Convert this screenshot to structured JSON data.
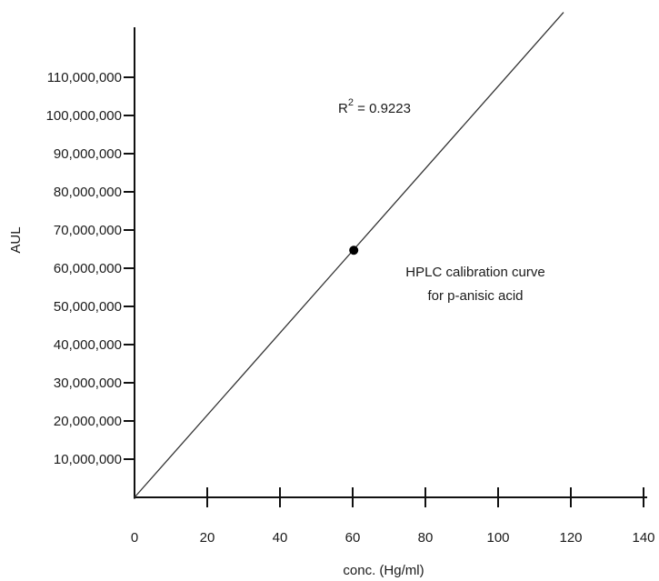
{
  "chart_data": {
    "type": "line",
    "title": "",
    "xlabel": "conc. (Hg/ml)",
    "ylabel": "AUL",
    "xlim": [
      0,
      140
    ],
    "ylim": [
      0,
      120000000
    ],
    "x_ticks": [
      0,
      20,
      40,
      60,
      80,
      100,
      120,
      140
    ],
    "x_tick_labels": [
      "0",
      "20",
      "40",
      "60",
      "80",
      "100",
      "120",
      "140"
    ],
    "y_ticks": [
      10000000,
      20000000,
      30000000,
      40000000,
      50000000,
      60000000,
      70000000,
      80000000,
      90000000,
      100000000,
      110000000
    ],
    "y_tick_labels": [
      "10,000,000",
      "20,000,000",
      "30,000,000",
      "40,000,000",
      "50,000,000",
      "60,000,000",
      "70,000,000",
      "80,000,000",
      "90,000,000",
      "100,000,000",
      "110,000,000"
    ],
    "grid": false,
    "series": [
      {
        "type": "line",
        "points": [
          {
            "x": 0,
            "y": 0
          },
          {
            "x": 118,
            "y": 127000000
          }
        ],
        "color": "#333333"
      },
      {
        "type": "scatter",
        "points": [
          {
            "x": 60.3,
            "y": 64700000
          }
        ],
        "color": "#000000"
      }
    ],
    "annotations": {
      "r2_prefix": "R",
      "r2_sup": "2",
      "r2_value": " = 0.9223",
      "caption_line1": "HPLC calibration curve",
      "caption_line2": "for p-anisic acid"
    }
  }
}
